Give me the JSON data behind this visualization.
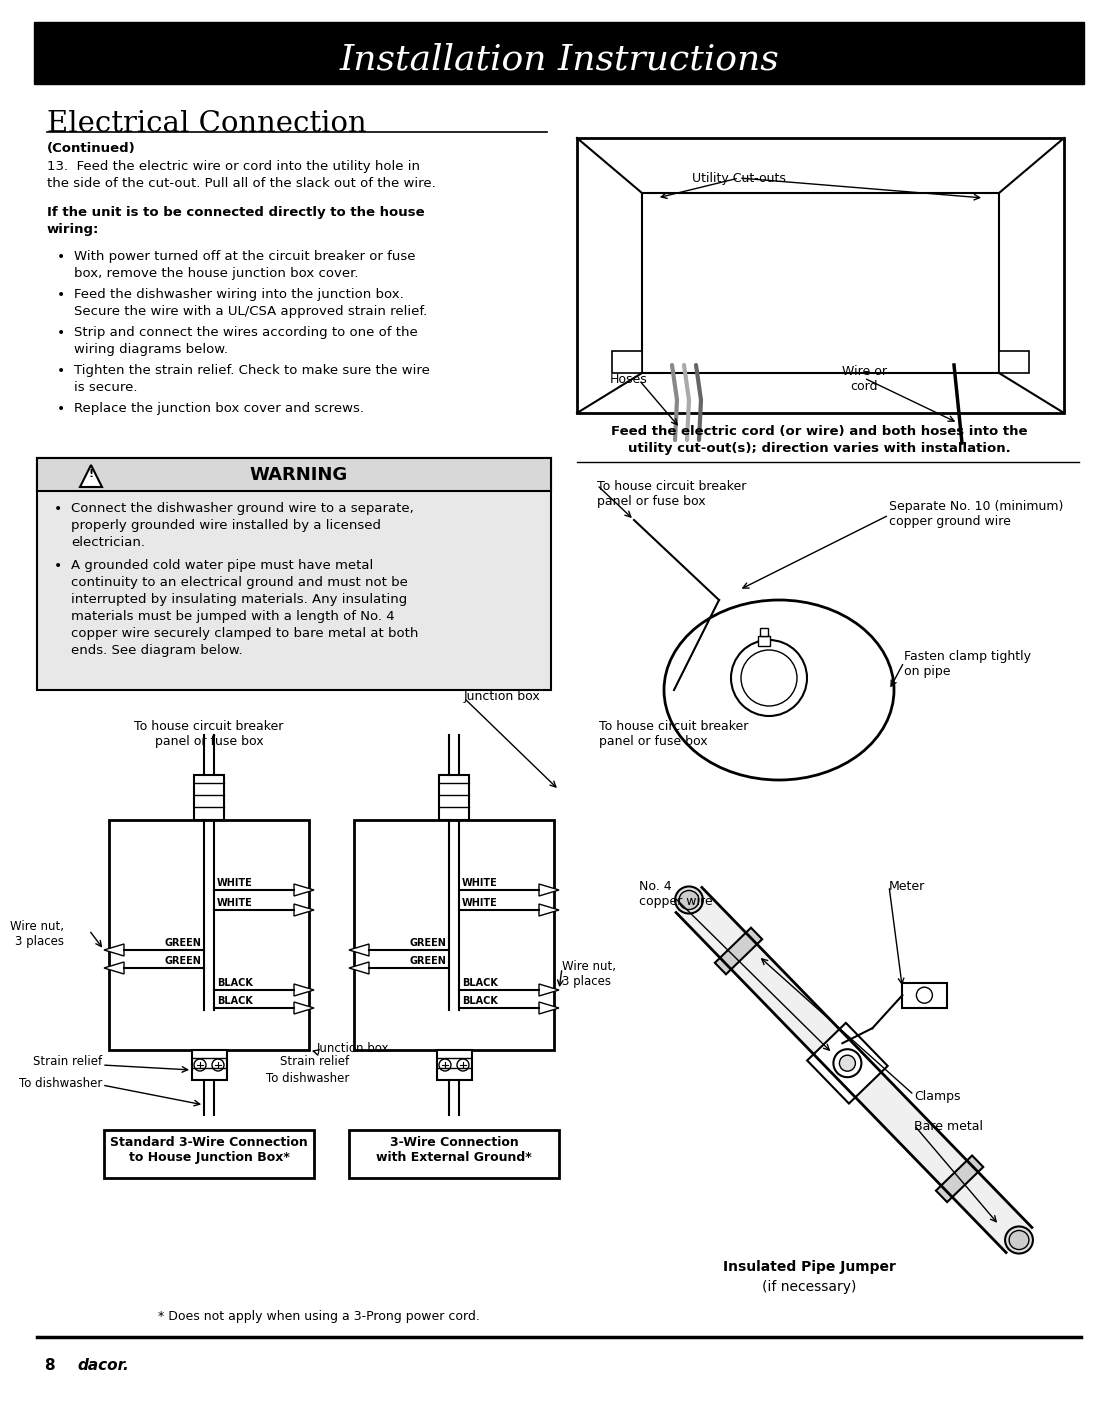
{
  "title": "Installation Instructions",
  "title_bg": "#000000",
  "title_color": "#ffffff",
  "section_title": "Electrical Connection",
  "page_bg": "#ffffff",
  "continued_text": "(Continued)",
  "step13": "13.  Feed the electric wire or cord into the utility hole in\nthe side of the cut-out. Pull all of the slack out of the wire.",
  "bold_heading": "If the unit is to be connected directly to the house\nwiring:",
  "bullets": [
    "With power turned off at the circuit breaker or fuse\nbox, remove the house junction box cover.",
    "Feed the dishwasher wiring into the junction box.\nSecure the wire with a UL/CSA approved strain relief.",
    "Strip and connect the wires according to one of the\nwiring diagrams below.",
    "Tighten the strain relief. Check to make sure the wire\nis secure.",
    "Replace the junction box cover and screws."
  ],
  "warning_title": "WARNING",
  "warning_bullets": [
    "Connect the dishwasher ground wire to a separate,\nproperly grounded wire installed by a licensed\nelectrician.",
    "A grounded cold water pipe must have metal\ncontinuity to an electrical ground and must not be\ninterrupted by insulating materials. Any insulating\nmaterials must be jumped with a length of No. 4\ncopper wire securely clamped to bare metal at both\nends. See diagram below."
  ],
  "top_right_caption": "Feed the electric cord (or wire) and both hoses into the\nutility cut-out(s); direction varies with installation.",
  "utility_cutouts_label": "Utility Cut-outs",
  "hoses_label": "Hoses",
  "wire_cord_label": "Wire or\ncord",
  "label_cb1": "To house circuit breaker\npanel or fuse box",
  "label_wn1": "Wire nut,\n3 places",
  "label_jr1": "Junction box",
  "label_sr1": "Strain relief",
  "label_td1": "To dishwasher",
  "label_jb1b": "Junction box",
  "label_cb2": "To house circuit breaker\npanel or fuse box",
  "label_jb2": "Junction box",
  "label_wn2": "Wire nut,\n3 places",
  "label_sr2": "Strain relief",
  "label_td2": "To dishwasher",
  "label_sep_gnd": "Separate No. 10 (minimum)\ncopper ground wire",
  "label_clamp_tight": "Fasten clamp tightly\non pipe",
  "label_meter": "Meter",
  "label_no4": "No. 4\ncopper wire",
  "label_clamps": "Clamps",
  "label_bare": "Bare metal",
  "diag1_title": "Standard 3-Wire Connection\nto House Junction Box*",
  "diag2_title": "3-Wire Connection\nwith External Ground*",
  "diag3_title_bold": "Insulated Pipe Jumper",
  "diag3_title_normal": "(if necessary)",
  "footnote": "* Does not apply when using a 3-Prong power cord.",
  "footer_page": "8",
  "footer_brand": "dacor."
}
